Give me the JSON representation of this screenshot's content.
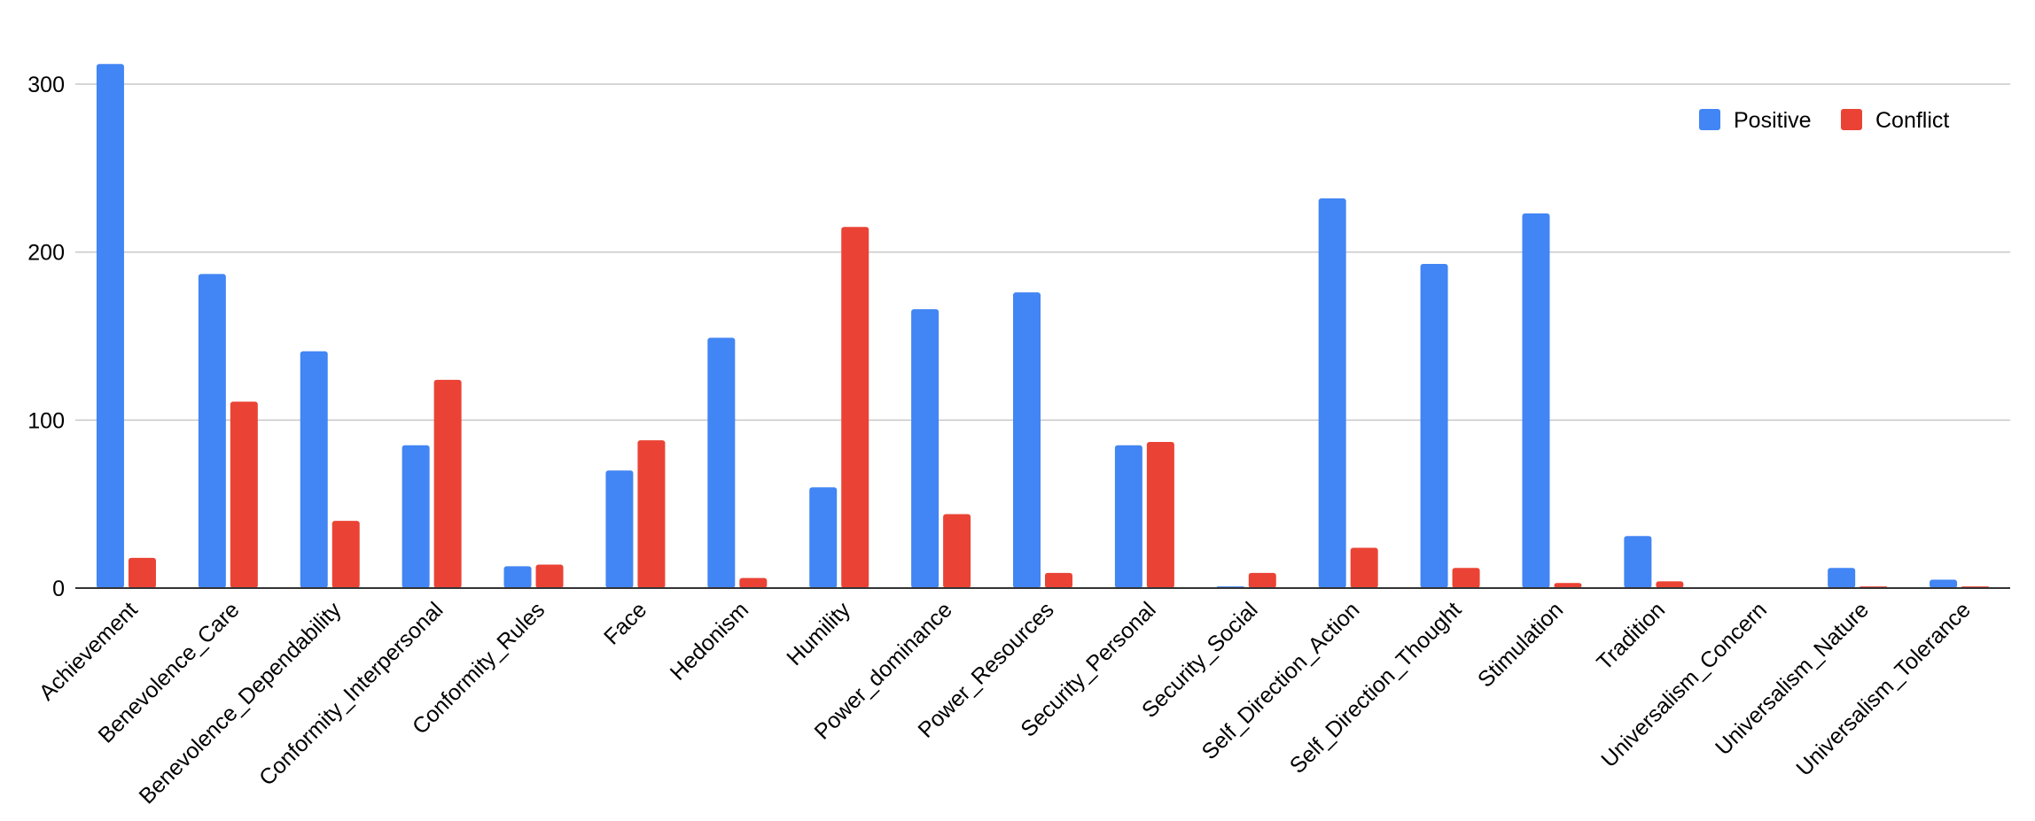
{
  "chart_data": {
    "type": "bar",
    "title": "",
    "xlabel": "",
    "ylabel": "",
    "ylim": [
      0,
      320
    ],
    "yticks": [
      "0",
      "100",
      "200",
      "300"
    ],
    "grid": true,
    "legend_position": "top-right",
    "categories": [
      "Achievement",
      "Benevolence_Care",
      "Benevolence_Dependability",
      "Conformity_Interpersonal",
      "Conformity_Rules",
      "Face",
      "Hedonism",
      "Humility",
      "Power_dominance",
      "Power_Resources",
      "Security_Personal",
      "Security_Social",
      "Self_Direction_Action",
      "Self_Direction_Thought",
      "Stimulation",
      "Tradition",
      "Universalism_Concern",
      "Universalism_Nature",
      "Universalism_Tolerance"
    ],
    "series": [
      {
        "name": "Positive",
        "color": "#4285f4",
        "values": [
          312,
          187,
          141,
          85,
          13,
          70,
          149,
          60,
          166,
          176,
          85,
          1,
          232,
          193,
          223,
          31,
          0,
          12,
          5
        ]
      },
      {
        "name": "Conflict",
        "color": "#ea4335",
        "values": [
          18,
          111,
          40,
          124,
          14,
          88,
          6,
          215,
          44,
          9,
          87,
          9,
          24,
          12,
          3,
          4,
          0,
          1,
          1
        ]
      }
    ]
  }
}
